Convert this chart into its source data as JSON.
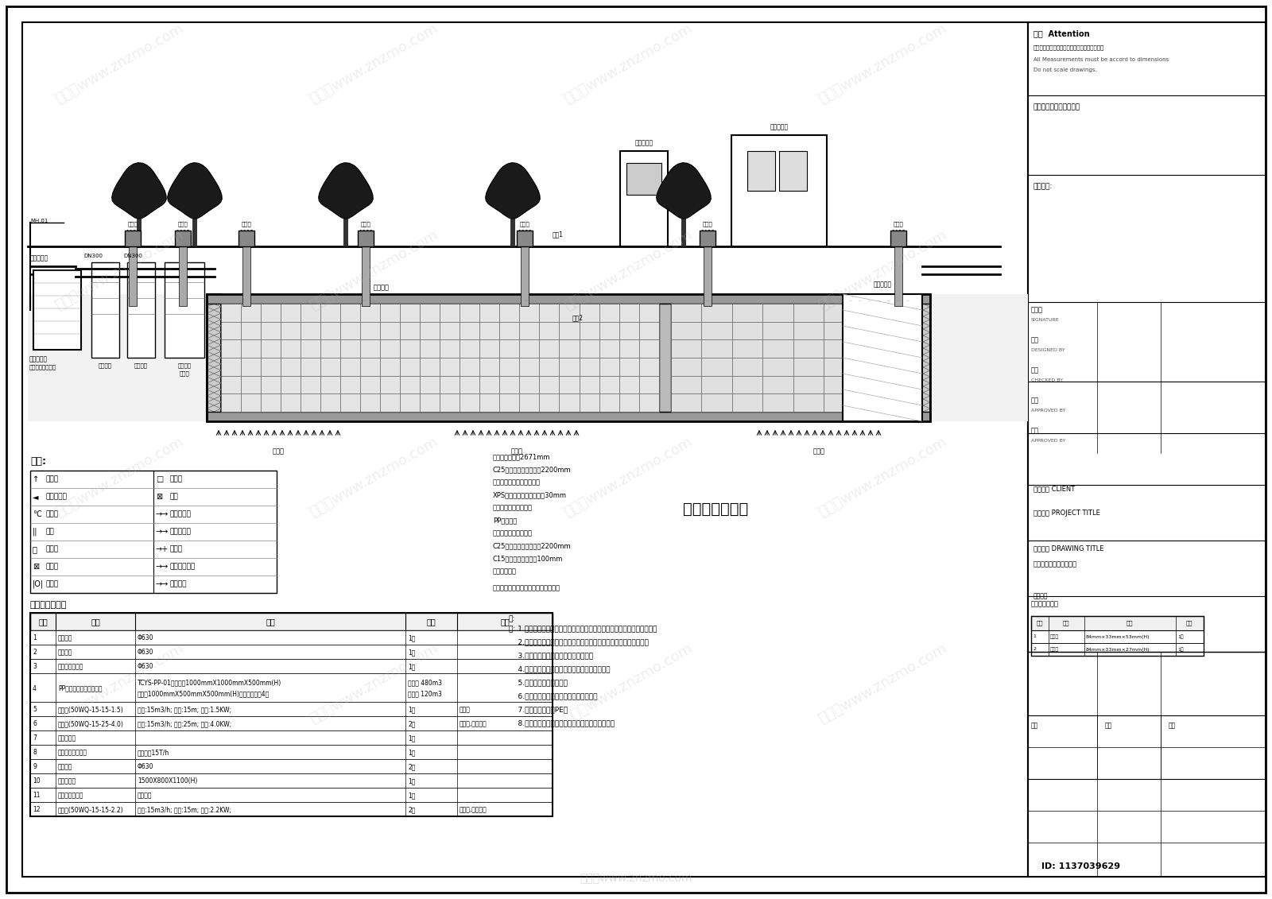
{
  "bg_color": "#ffffff",
  "title": "雨水回用工艺图",
  "watermark": "www.znzmo.com",
  "id_text": "ID: 1137039629",
  "legend_title": "图例:",
  "legend_items_left": [
    [
      "→",
      "止回阀"
    ],
    [
      "◄",
      "防污隔断阀"
    ],
    [
      "℃",
      "压力表"
    ],
    [
      "||",
      "管箍"
    ],
    [
      "磁",
      "电磁阀"
    ],
    [
      "⊠",
      "手动阀"
    ],
    [
      "|O|",
      "软接头"
    ]
  ],
  "legend_items_right": [
    [
      "☐",
      "大小头"
    ],
    [
      "⊠",
      "蝶阀"
    ],
    [
      "--→",
      "雨水提升管"
    ],
    [
      "--",
      "雨水回用管"
    ],
    [
      "-+",
      "排污管"
    ],
    [
      "--",
      "自来水补水管"
    ],
    [
      "--",
      "反冲洗管"
    ]
  ],
  "equipment_title": "主要设备一览表",
  "equipment_headers": [
    "序号",
    "名称",
    "规格",
    "数量",
    "备注"
  ],
  "equipment_data": [
    [
      "1",
      "截污装置",
      "Φ630",
      "1个",
      ""
    ],
    [
      "2",
      "弃流装置",
      "Φ630",
      "1个",
      ""
    ],
    [
      "3",
      "复合滤过滤装置",
      "Φ630",
      "1个",
      ""
    ],
    [
      "4",
      "PP模块储蓄水池和蓄水池",
      "TCYS-PP-01模块数量1000mmX1000mmX500mm(H)\n蓄水池1000mmX500mmX500mm(H)每层最小数量4块",
      "蓄水池 480m3\n清水池 120m3",
      ""
    ],
    [
      "5",
      "潜污泵(50WQ-15-15-1.5)",
      "流量:15m3/h; 扬程:15m; 功率:1.5KW;",
      "1台",
      "潜水泵"
    ],
    [
      "6",
      "回用泵(50WQ-15-25-4.0)",
      "流量:15m3/h; 扬程:25m; 功率:4.0KW;",
      "2台",
      "潜水泵,一用一备"
    ],
    [
      "7",
      "系统控制柜",
      "",
      "1套",
      ""
    ],
    [
      "8",
      "一体化处理设备间",
      "处理能力15T/h",
      "1套",
      ""
    ],
    [
      "9",
      "进出水井",
      "Φ630",
      "2套",
      ""
    ],
    [
      "10",
      "砖砕阀门井",
      "1500X800X1100(H)",
      "1套",
      ""
    ],
    [
      "11",
      "反冲洗管路装置",
      "配套交献",
      "1套",
      ""
    ],
    [
      "12",
      "提升泵(50WQ-15-15-2.2)",
      "流量:15m3/h; 扬程:15m; 功率:2.2KW;",
      "2台",
      "潜水泵,一用一备"
    ]
  ],
  "notes": [
    "注: 1.下游抽水井的出水管标高应保证弃流用水能顺利流入下游的雨水管道。",
    "    2.雨水回用水管道严禁与生活饮用水给水管道任何方式的直接连接。",
    "    3.雨水回用水管道外壁应涂绿色标志。",
    "    4.本系统球竪工，并应设计配合认后方可施工。",
    "    5.设备间内有防潮措施。",
    "    6.标高需要根据现场市政管网高度确定。",
    "    7.雨水管材质应为PE。",
    "    8.弃流量不具备弃至其他管道，则就地入渗弃流。"
  ],
  "section_desc": [
    "种植土层，厚土2671mm",
    "C25钉筋混凝土顶板，匹2200mm",
    "模块与模块间隙用中沙防护",
    "XPS挤塑防护板保护层，厓30mm",
    "防渗包裹物，两布一膜",
    "PP模块骨架",
    "防渗包裹物，两布一膜",
    "C25钉筋混凝土底板，匹2200mm",
    "C15素混凝土垫层，匹100mm",
    "底层素土夸实"
  ],
  "module_note": "（模块基础具体视现场土质情况确定）",
  "material_table_title": "模块信息一览表",
  "material_headers": [
    "序号",
    "名称",
    "品牌",
    "备注"
  ],
  "material_data": [
    [
      "1",
      "蓄水池",
      "84mm×33mm×53mm(H)",
      "1批"
    ],
    [
      "2",
      "清水池",
      "84mm×33mm×27mm(H)",
      "1批"
    ]
  ]
}
